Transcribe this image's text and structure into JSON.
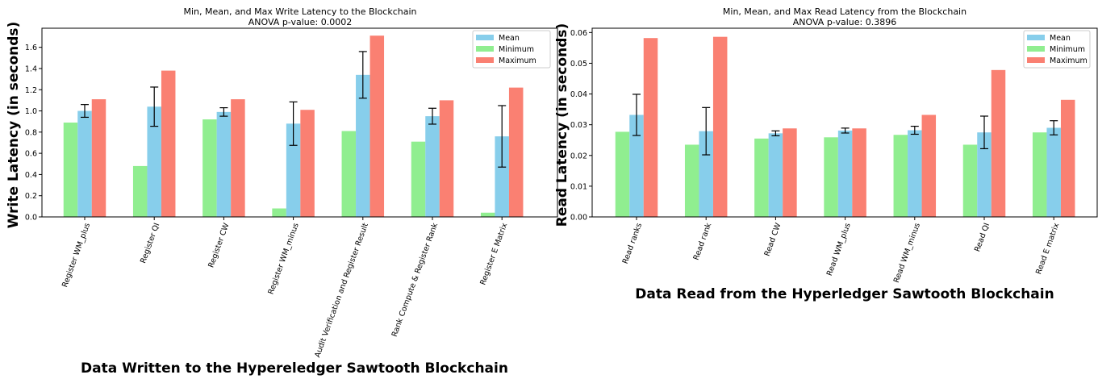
{
  "colors": {
    "mean": "#87ceeb",
    "minimum": "#90ee90",
    "maximum": "#fa8072"
  },
  "chart_data": [
    {
      "type": "bar",
      "title": "Min, Mean, and Max Write Latency to the Blockchain",
      "subtitle": "ANOVA p-value: 0.0002",
      "xlabel": "Data Written to the Hypereledger Sawtooth Blockchain",
      "ylabel": "Write Latency (in seconds)",
      "ylim": [
        0,
        1.78
      ],
      "yticks": [
        0.0,
        0.2,
        0.4,
        0.6,
        0.8,
        1.0,
        1.2,
        1.4,
        1.6
      ],
      "ytick_decimals": 1,
      "grid": false,
      "legend_position": "top-right",
      "categories": [
        "Register WM_plus",
        "Register QI",
        "Register CW",
        "Register WM_minus",
        "Audit Verification and Register Result",
        "Rank Compute & Register Rank",
        "Register E Matrix"
      ],
      "series": [
        {
          "name": "Mean",
          "color_key": "mean",
          "values": [
            1.0,
            1.04,
            0.99,
            0.88,
            1.34,
            0.95,
            0.76
          ],
          "error": [
            0.06,
            0.185,
            0.04,
            0.205,
            0.22,
            0.075,
            0.29
          ]
        },
        {
          "name": "Minimum",
          "color_key": "minimum",
          "values": [
            0.89,
            0.48,
            0.92,
            0.08,
            0.81,
            0.71,
            0.04
          ]
        },
        {
          "name": "Maximum",
          "color_key": "maximum",
          "values": [
            1.11,
            1.38,
            1.11,
            1.01,
            1.71,
            1.1,
            1.22
          ]
        }
      ]
    },
    {
      "type": "bar",
      "title": "Min, Mean, and Max Read Latency from the Blockchain",
      "subtitle": "ANOVA p-value: 0.3896",
      "xlabel": "Data Read from the Hyperledger Sawtooth Blockchain",
      "ylabel": "Read Latency (in seconds)",
      "ylim": [
        0,
        0.0614
      ],
      "yticks": [
        0.0,
        0.01,
        0.02,
        0.03,
        0.04,
        0.05,
        0.06
      ],
      "ytick_decimals": 2,
      "grid": false,
      "legend_position": "top-right",
      "categories": [
        "Read ranks",
        "Read rank",
        "Read CW",
        "Read WM_plus",
        "Read WM_minus",
        "Read QI",
        "Read E matrix"
      ],
      "series": [
        {
          "name": "Mean",
          "color_key": "mean",
          "values": [
            0.0332,
            0.0279,
            0.0272,
            0.0281,
            0.0282,
            0.0275,
            0.029
          ],
          "error": [
            0.0067,
            0.0077,
            0.0008,
            0.0008,
            0.0013,
            0.0053,
            0.0023
          ]
        },
        {
          "name": "Minimum",
          "color_key": "minimum",
          "values": [
            0.0277,
            0.0235,
            0.0255,
            0.0259,
            0.0267,
            0.0235,
            0.0275
          ]
        },
        {
          "name": "Maximum",
          "color_key": "maximum",
          "values": [
            0.0582,
            0.0586,
            0.0288,
            0.0288,
            0.0332,
            0.0478,
            0.0381
          ]
        }
      ]
    }
  ]
}
